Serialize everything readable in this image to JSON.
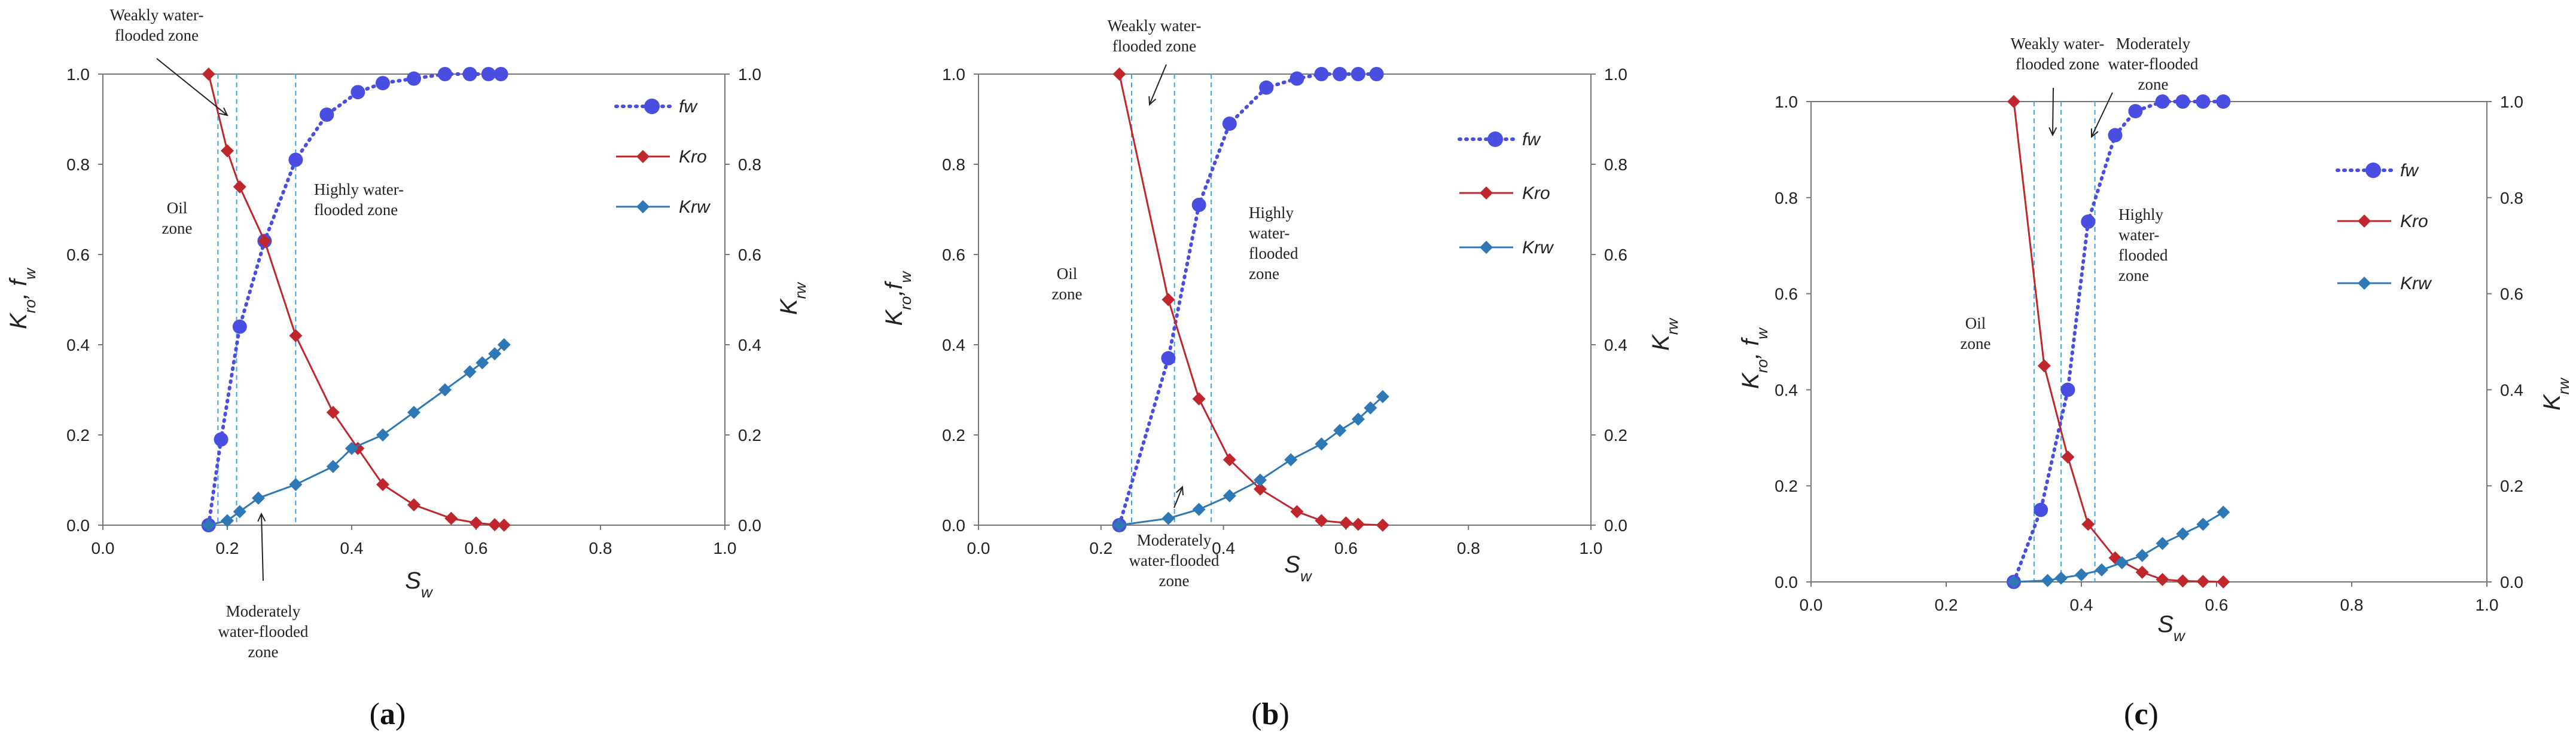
{
  "chart_data": [
    {
      "type": "line",
      "panel_label": "(a)",
      "caption": {
        "open": "(",
        "letter": "a",
        "close": ")"
      },
      "xlabel": "S",
      "xlabel_sub": "w",
      "ylabel_left": "K",
      "ylabel_left_sub": "ro",
      "ylabel_left_rest": ", f",
      "ylabel_left_rest_sub": "w",
      "ylabel_right": "K",
      "ylabel_right_sub": "rw",
      "xlim": [
        0,
        1
      ],
      "ylim": [
        0,
        1
      ],
      "xticks": [
        "0.0",
        "0.2",
        "0.4",
        "0.6",
        "0.8",
        "1.0"
      ],
      "yticks": [
        "0.0",
        "0.2",
        "0.4",
        "0.6",
        "0.8",
        "1.0"
      ],
      "legend": [
        {
          "name": "fw",
          "label": "fw"
        },
        {
          "name": "Kro",
          "label": "Kro"
        },
        {
          "name": "Krw",
          "label": "Krw"
        }
      ],
      "series": [
        {
          "name": "fw",
          "color": "#4a4ee0",
          "style": "dotted",
          "marker": "circle",
          "x": [
            0.17,
            0.19,
            0.22,
            0.26,
            0.31,
            0.36,
            0.41,
            0.45,
            0.5,
            0.55,
            0.59,
            0.62,
            0.64
          ],
          "y": [
            0.0,
            0.19,
            0.44,
            0.63,
            0.81,
            0.91,
            0.96,
            0.98,
            0.99,
            1.0,
            1.0,
            1.0,
            1.0
          ]
        },
        {
          "name": "Kro",
          "color": "#c0272d",
          "style": "solid",
          "marker": "diamond",
          "x": [
            0.17,
            0.2,
            0.22,
            0.26,
            0.31,
            0.37,
            0.41,
            0.45,
            0.5,
            0.56,
            0.6,
            0.63,
            0.645
          ],
          "y": [
            1.0,
            0.83,
            0.75,
            0.63,
            0.42,
            0.25,
            0.17,
            0.09,
            0.045,
            0.015,
            0.005,
            0.001,
            0.0
          ]
        },
        {
          "name": "Krw",
          "color": "#2e78b6",
          "style": "solid",
          "marker": "diamond",
          "x": [
            0.17,
            0.2,
            0.22,
            0.25,
            0.31,
            0.37,
            0.4,
            0.45,
            0.5,
            0.55,
            0.59,
            0.61,
            0.63,
            0.645
          ],
          "y": [
            0.0,
            0.01,
            0.03,
            0.06,
            0.09,
            0.13,
            0.17,
            0.2,
            0.25,
            0.3,
            0.34,
            0.36,
            0.38,
            0.4
          ]
        }
      ],
      "vlines": [
        0.185,
        0.215,
        0.31
      ],
      "annotations": [
        {
          "id": "weak",
          "lines": [
            "Weakly water-",
            "flooded zone"
          ],
          "arrow": true
        },
        {
          "id": "oil",
          "lines": [
            "Oil",
            "zone"
          ],
          "arrow": false
        },
        {
          "id": "high",
          "lines": [
            "Highly water-",
            "flooded zone"
          ],
          "arrow": false
        },
        {
          "id": "moderate",
          "lines": [
            "Moderately",
            "water-flooded",
            "zone"
          ],
          "arrow": true
        }
      ]
    },
    {
      "type": "line",
      "panel_label": "(b)",
      "caption": {
        "open": "(",
        "letter": "b",
        "close": ")"
      },
      "xlabel": "S",
      "xlabel_sub": "w",
      "ylabel_left": "K",
      "ylabel_left_sub": "ro",
      "ylabel_left_rest": ",f",
      "ylabel_left_rest_sub": "w",
      "ylabel_right": "K",
      "ylabel_right_sub": "rw",
      "xlim": [
        0,
        1
      ],
      "ylim": [
        0,
        1
      ],
      "xticks": [
        "0.0",
        "0.2",
        "0.4",
        "0.6",
        "0.8",
        "1.0"
      ],
      "yticks": [
        "0.0",
        "0.2",
        "0.4",
        "0.6",
        "0.8",
        "1.0"
      ],
      "legend": [
        {
          "name": "fw",
          "label": "fw"
        },
        {
          "name": "Kro",
          "label": "Kro"
        },
        {
          "name": "Krw",
          "label": "Krw"
        }
      ],
      "series": [
        {
          "name": "fw",
          "color": "#4a4ee0",
          "style": "dotted",
          "marker": "circle",
          "x": [
            0.23,
            0.31,
            0.36,
            0.41,
            0.47,
            0.52,
            0.56,
            0.59,
            0.62,
            0.65
          ],
          "y": [
            0.0,
            0.37,
            0.71,
            0.89,
            0.97,
            0.99,
            1.0,
            1.0,
            1.0,
            1.0
          ]
        },
        {
          "name": "Kro",
          "color": "#c0272d",
          "style": "solid",
          "marker": "diamond",
          "x": [
            0.23,
            0.31,
            0.36,
            0.41,
            0.46,
            0.52,
            0.56,
            0.6,
            0.62,
            0.66
          ],
          "y": [
            1.0,
            0.5,
            0.28,
            0.145,
            0.08,
            0.03,
            0.01,
            0.005,
            0.002,
            0.0
          ]
        },
        {
          "name": "Krw",
          "color": "#2e78b6",
          "style": "solid",
          "marker": "diamond",
          "x": [
            0.23,
            0.31,
            0.36,
            0.41,
            0.46,
            0.51,
            0.56,
            0.59,
            0.62,
            0.64,
            0.66
          ],
          "y": [
            0.0,
            0.015,
            0.035,
            0.065,
            0.1,
            0.145,
            0.18,
            0.21,
            0.235,
            0.26,
            0.285
          ]
        }
      ],
      "vlines": [
        0.25,
        0.32,
        0.38
      ],
      "annotations": [
        {
          "id": "weak",
          "lines": [
            "Weakly water-",
            "flooded zone"
          ],
          "arrow": true
        },
        {
          "id": "oil",
          "lines": [
            "Oil",
            "zone"
          ],
          "arrow": false
        },
        {
          "id": "high",
          "lines": [
            "Highly",
            "water-",
            "flooded",
            "zone"
          ],
          "arrow": false
        },
        {
          "id": "moderate",
          "lines": [
            "Moderately",
            "water-flooded",
            "zone"
          ],
          "arrow": true
        }
      ]
    },
    {
      "type": "line",
      "panel_label": "(c)",
      "caption": {
        "open": "(",
        "letter": "c",
        "close": ")"
      },
      "xlabel": "S",
      "xlabel_sub": "w",
      "ylabel_left": "K",
      "ylabel_left_sub": "ro",
      "ylabel_left_rest": ", f",
      "ylabel_left_rest_sub": "w",
      "ylabel_right": "K",
      "ylabel_right_sub": "rw",
      "xlim": [
        0,
        1
      ],
      "ylim": [
        0,
        1
      ],
      "xticks": [
        "0.0",
        "0.2",
        "0.4",
        "0.6",
        "0.8",
        "1.0"
      ],
      "yticks": [
        "0.0",
        "0.2",
        "0.4",
        "0.6",
        "0.8",
        "1.0"
      ],
      "legend": [
        {
          "name": "fw",
          "label": "fw"
        },
        {
          "name": "Kro",
          "label": "Kro"
        },
        {
          "name": "Krw",
          "label": "Krw"
        }
      ],
      "series": [
        {
          "name": "fw",
          "color": "#4a4ee0",
          "style": "dotted",
          "marker": "circle",
          "x": [
            0.3,
            0.34,
            0.38,
            0.41,
            0.45,
            0.48,
            0.52,
            0.55,
            0.58,
            0.61
          ],
          "y": [
            0.0,
            0.15,
            0.4,
            0.75,
            0.93,
            0.98,
            1.0,
            1.0,
            1.0,
            1.0
          ]
        },
        {
          "name": "Kro",
          "color": "#c0272d",
          "style": "solid",
          "marker": "diamond",
          "x": [
            0.3,
            0.345,
            0.38,
            0.41,
            0.45,
            0.49,
            0.52,
            0.55,
            0.58,
            0.61
          ],
          "y": [
            1.0,
            0.45,
            0.26,
            0.12,
            0.05,
            0.02,
            0.005,
            0.002,
            0.001,
            0.0
          ]
        },
        {
          "name": "Krw",
          "color": "#2e78b6",
          "style": "solid",
          "marker": "diamond",
          "x": [
            0.3,
            0.35,
            0.37,
            0.4,
            0.43,
            0.46,
            0.49,
            0.52,
            0.55,
            0.58,
            0.61
          ],
          "y": [
            0.0,
            0.003,
            0.008,
            0.015,
            0.025,
            0.04,
            0.055,
            0.08,
            0.1,
            0.12,
            0.145
          ]
        }
      ],
      "vlines": [
        0.33,
        0.37,
        0.42
      ],
      "annotations": [
        {
          "id": "weak",
          "lines": [
            "Weakly water-",
            "flooded zone"
          ],
          "arrow": true
        },
        {
          "id": "oil",
          "lines": [
            "Oil",
            "zone"
          ],
          "arrow": false
        },
        {
          "id": "high",
          "lines": [
            "Highly",
            "water-",
            "flooded",
            "zone"
          ],
          "arrow": false
        },
        {
          "id": "moderate",
          "lines": [
            "Moderately",
            "water-flooded",
            "zone"
          ],
          "arrow": true
        }
      ]
    }
  ]
}
